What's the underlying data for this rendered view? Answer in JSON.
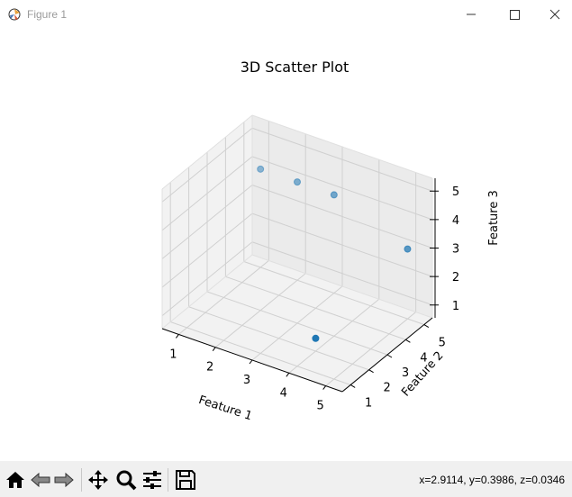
{
  "window": {
    "title": "Figure 1",
    "icons": [
      "app-icon",
      "minimize-icon",
      "maximize-icon",
      "close-icon"
    ]
  },
  "toolbar": {
    "icons": [
      "home-icon",
      "back-icon",
      "forward-icon",
      "pan-icon",
      "zoom-icon",
      "configure-subplots-icon",
      "save-icon"
    ],
    "status": "x=2.9114, y=0.3986, z=0.0346"
  },
  "chart_data": {
    "type": "scatter",
    "projection": "3d",
    "title": "3D Scatter Plot",
    "xlabel": "Feature 1",
    "ylabel": "Feature 2",
    "zlabel": "Feature 3",
    "xlim": [
      1,
      5
    ],
    "ylim": [
      1,
      5
    ],
    "zlim": [
      1,
      5
    ],
    "xticks": [
      "1",
      "2",
      "3",
      "4",
      "5"
    ],
    "yticks": [
      "1",
      "2",
      "3",
      "4",
      "5"
    ],
    "zticks": [
      "1",
      "2",
      "3",
      "4",
      "5"
    ],
    "grid": true,
    "marker_color": "#1f77b4",
    "points": [
      {
        "x": 1,
        "y": 5,
        "z": 4
      },
      {
        "x": 2,
        "y": 5,
        "z": 4
      },
      {
        "x": 3,
        "y": 5,
        "z": 4
      },
      {
        "x": 5,
        "y": 5,
        "z": 3
      },
      {
        "x": 4,
        "y": 2,
        "z": 1
      }
    ]
  }
}
